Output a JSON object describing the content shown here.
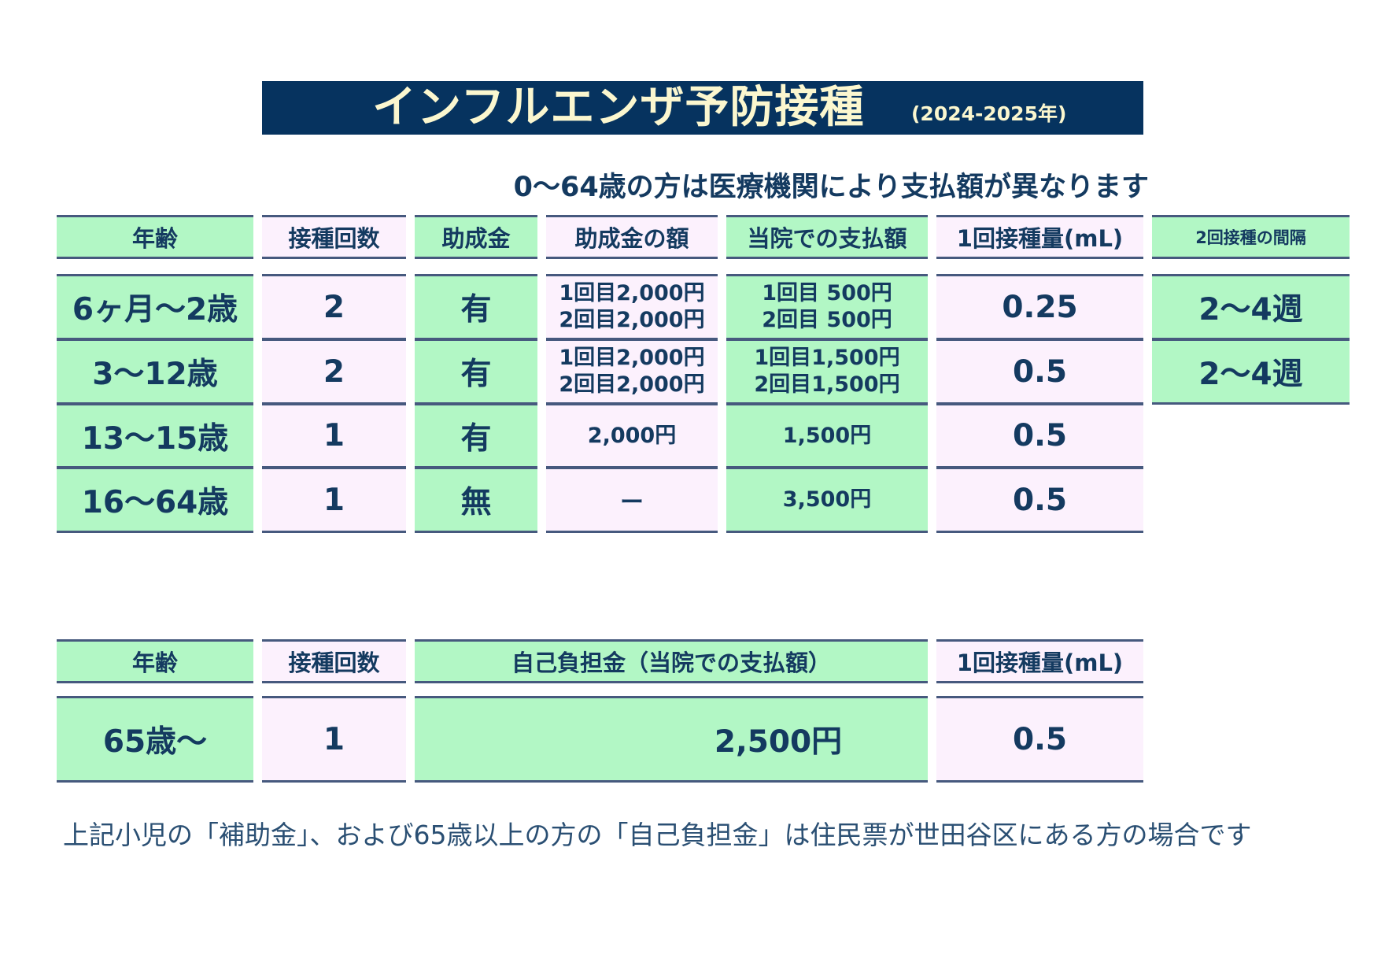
{
  "title": "インフルエンザ予防接種",
  "year": "(2024-2025年)",
  "subtitle": "0～64歳の方は医療機関により支払額が異なります",
  "table1": {
    "headers": [
      "年齢",
      "接種回数",
      "助成金",
      "助成金の額",
      "当院での支払額",
      "1回接種量(mL)",
      "2回接種の間隔"
    ],
    "rows": [
      {
        "age": "6ヶ月～2歳",
        "count": "2",
        "subsidy": "有",
        "subsidy_amount": [
          "1回目2,000円",
          "2回目2,000円"
        ],
        "payment": [
          "1回目 500円",
          "2回目 500円"
        ],
        "dose": "0.25",
        "interval": "2～4週"
      },
      {
        "age": "3～12歳",
        "count": "2",
        "subsidy": "有",
        "subsidy_amount": [
          "1回目2,000円",
          "2回目2,000円"
        ],
        "payment": [
          "1回目1,500円",
          "2回目1,500円"
        ],
        "dose": "0.5",
        "interval": "2～4週"
      },
      {
        "age": "13～15歳",
        "count": "1",
        "subsidy": "有",
        "subsidy_amount": [
          "2,000円"
        ],
        "payment": [
          "1,500円"
        ],
        "dose": "0.5",
        "interval": ""
      },
      {
        "age": "16～64歳",
        "count": "1",
        "subsidy": "無",
        "subsidy_amount": [
          "ー"
        ],
        "payment": [
          "3,500円"
        ],
        "dose": "0.5",
        "interval": ""
      }
    ]
  },
  "table2": {
    "headers": [
      "年齢",
      "接種回数",
      "自己負担金（当院での支払額）",
      "1回接種量(mL)"
    ],
    "row": {
      "age": "65歳～",
      "count": "1",
      "payment": "2,500円",
      "dose": "0.5"
    }
  },
  "note": "上記小児の「補助金」、および65歳以上の方の「自己負担金」は住民票が世田谷区にある方の場合です",
  "colors": {
    "banner": "#06335f",
    "banner_text": "#fbf7cf",
    "green": "#b2f7c5",
    "pink": "#fcf1fd",
    "text": "#143a60",
    "border": "#46597e"
  }
}
